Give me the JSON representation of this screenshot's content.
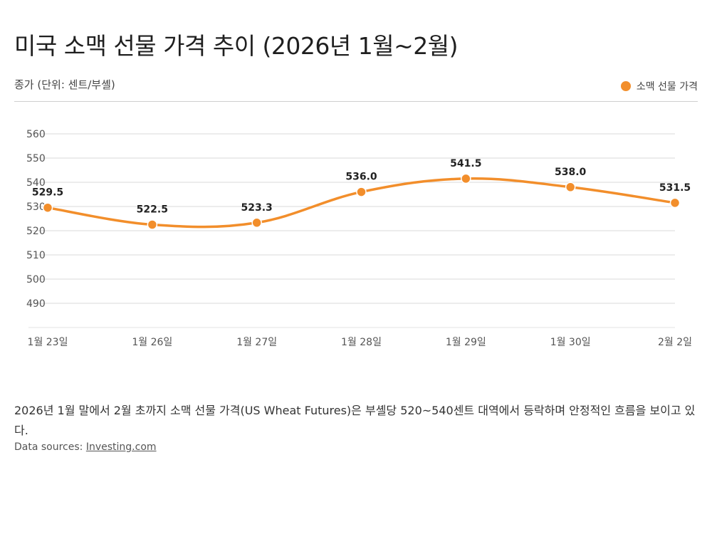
{
  "title": "미국 소맥 선물 가격 추이 (2026년 1월~2월)",
  "subtitle": "종가 (단위: 센트/부셸)",
  "legend": {
    "label": "소맥 선물 가격",
    "color": "#F28E2B"
  },
  "description": "2026년 1월 말에서 2월 초까지 소맥 선물 가격(US Wheat Futures)은 부셸당 520~540센트 대역에서 등락하며 안정적인 흐름을 보이고 있다.",
  "sources": {
    "prefix": "Data sources: ",
    "link": "Investing.com"
  },
  "chart_data": {
    "type": "line",
    "categories": [
      "1월 23일",
      "1월 26일",
      "1월 27일",
      "1월 28일",
      "1월 29일",
      "1월 30일",
      "2월 2일"
    ],
    "series": [
      {
        "name": "소맥 선물 가격",
        "color": "#F28E2B",
        "values": [
          529.5,
          522.5,
          523.3,
          536.0,
          541.5,
          538.0,
          531.5
        ],
        "labels": [
          "529.5",
          "522.5",
          "523.3",
          "536.0",
          "541.5",
          "538.0",
          "531.5"
        ]
      }
    ],
    "yticks": [
      490,
      500,
      510,
      520,
      530,
      540,
      550,
      560
    ],
    "ylim": [
      480,
      560
    ],
    "grid": true,
    "legend_position": "top-right"
  }
}
